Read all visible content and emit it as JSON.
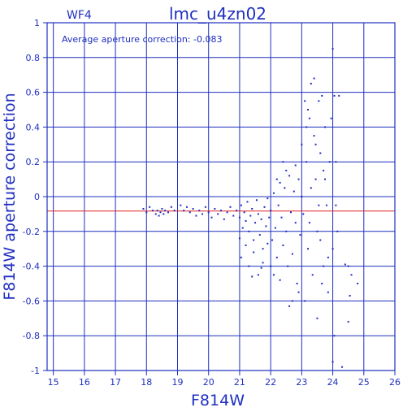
{
  "chart_data": {
    "type": "scatter",
    "panel_label": "WF4",
    "title": "lmc_u4zn02",
    "annotation": "Average aperture correction: -0.083",
    "xlabel": "F814W",
    "ylabel": "F814W aperture correction",
    "xlim": [
      14.8,
      26
    ],
    "ylim": [
      -1,
      1
    ],
    "x_ticks": [
      15,
      16,
      17,
      18,
      19,
      20,
      21,
      22,
      23,
      24,
      25,
      26
    ],
    "y_ticks": [
      -1,
      -0.8,
      -0.6,
      -0.4,
      -0.2,
      0,
      0.2,
      0.4,
      0.6,
      0.8,
      1
    ],
    "y_tick_labels": [
      "-1",
      "-0.8",
      "-0.6",
      "-0.4",
      "-0.2",
      "0",
      "0.2",
      "0.4",
      "0.6",
      "0.8",
      "1"
    ],
    "grid": true,
    "reference_line": {
      "y": -0.083,
      "color": "#e02020"
    },
    "colors": {
      "axes": "#1f2fbf",
      "points": "#1f2fbf",
      "reference": "#e02020"
    },
    "series": [
      {
        "points": [
          [
            17.9,
            -0.07
          ],
          [
            18.0,
            -0.09
          ],
          [
            18.1,
            -0.06
          ],
          [
            18.2,
            -0.08
          ],
          [
            18.3,
            -0.1
          ],
          [
            18.35,
            -0.08
          ],
          [
            18.4,
            -0.11
          ],
          [
            18.45,
            -0.09
          ],
          [
            18.5,
            -0.07
          ],
          [
            18.55,
            -0.1
          ],
          [
            18.6,
            -0.08
          ],
          [
            18.7,
            -0.09
          ],
          [
            18.8,
            -0.06
          ],
          [
            18.9,
            -0.08
          ],
          [
            19.1,
            -0.05
          ],
          [
            19.2,
            -0.08
          ],
          [
            19.3,
            -0.06
          ],
          [
            19.4,
            -0.09
          ],
          [
            19.5,
            -0.07
          ],
          [
            19.6,
            -0.11
          ],
          [
            19.7,
            -0.08
          ],
          [
            19.8,
            -0.1
          ],
          [
            19.9,
            -0.06
          ],
          [
            20.0,
            -0.09
          ],
          [
            20.1,
            -0.12
          ],
          [
            20.2,
            -0.07
          ],
          [
            20.3,
            -0.1
          ],
          [
            20.4,
            -0.08
          ],
          [
            20.5,
            -0.13
          ],
          [
            20.6,
            -0.09
          ],
          [
            20.7,
            -0.06
          ],
          [
            20.8,
            -0.11
          ],
          [
            20.9,
            -0.08
          ],
          [
            21.0,
            -0.12
          ],
          [
            21.05,
            -0.05
          ],
          [
            21.1,
            -0.18
          ],
          [
            21.15,
            -0.09
          ],
          [
            21.2,
            -0.14
          ],
          [
            21.25,
            -0.03
          ],
          [
            21.3,
            -0.2
          ],
          [
            21.35,
            -0.11
          ],
          [
            21.4,
            -0.07
          ],
          [
            21.45,
            -0.25
          ],
          [
            21.5,
            -0.15
          ],
          [
            21.55,
            -0.02
          ],
          [
            21.6,
            -0.1
          ],
          [
            21.65,
            -0.22
          ],
          [
            21.7,
            -0.13
          ],
          [
            21.75,
            -0.3
          ],
          [
            21.8,
            -0.06
          ],
          [
            21.85,
            -0.17
          ],
          [
            21.9,
            -0.01
          ],
          [
            21.95,
            -0.12
          ],
          [
            21.05,
            -0.35
          ],
          [
            21.2,
            -0.28
          ],
          [
            21.3,
            -0.4
          ],
          [
            21.45,
            -0.32
          ],
          [
            21.6,
            -0.45
          ],
          [
            21.75,
            -0.38
          ],
          [
            21.9,
            -0.27
          ],
          [
            21.4,
            -0.46
          ],
          [
            21.0,
            -0.24
          ],
          [
            21.7,
            -0.41
          ],
          [
            22.0,
            -0.08
          ],
          [
            22.05,
            -0.25
          ],
          [
            22.1,
            0.02
          ],
          [
            22.15,
            -0.18
          ],
          [
            22.2,
            -0.35
          ],
          [
            22.25,
            -0.05
          ],
          [
            22.3,
            0.08
          ],
          [
            22.35,
            -0.12
          ],
          [
            22.4,
            -0.28
          ],
          [
            22.45,
            0.05
          ],
          [
            22.5,
            -0.2
          ],
          [
            22.55,
            -0.4
          ],
          [
            22.6,
            0.12
          ],
          [
            22.65,
            -0.09
          ],
          [
            22.7,
            -0.33
          ],
          [
            22.75,
            0.03
          ],
          [
            22.8,
            -0.15
          ],
          [
            22.85,
            -0.5
          ],
          [
            22.9,
            0.1
          ],
          [
            22.95,
            -0.22
          ],
          [
            22.1,
            -0.45
          ],
          [
            22.3,
            -0.48
          ],
          [
            22.5,
            0.15
          ],
          [
            22.7,
            -0.6
          ],
          [
            22.8,
            0.18
          ],
          [
            22.6,
            -0.63
          ],
          [
            22.4,
            0.2
          ],
          [
            22.9,
            -0.55
          ],
          [
            22.2,
            0.1
          ],
          [
            22.0,
            -0.4
          ],
          [
            23.0,
            0.3
          ],
          [
            23.05,
            -0.1
          ],
          [
            23.1,
            0.55
          ],
          [
            23.15,
            0.2
          ],
          [
            23.2,
            -0.3
          ],
          [
            23.25,
            0.45
          ],
          [
            23.3,
            0.05
          ],
          [
            23.35,
            -0.45
          ],
          [
            23.4,
            0.35
          ],
          [
            23.45,
            0.1
          ],
          [
            23.5,
            -0.2
          ],
          [
            23.55,
            0.55
          ],
          [
            23.6,
            0.25
          ],
          [
            23.65,
            -0.5
          ],
          [
            23.7,
            0.15
          ],
          [
            23.75,
            0.4
          ],
          [
            23.8,
            -0.05
          ],
          [
            23.85,
            -0.35
          ],
          [
            23.9,
            0.2
          ],
          [
            23.95,
            0.45
          ],
          [
            23.1,
            -0.6
          ],
          [
            23.3,
            0.65
          ],
          [
            23.5,
            -0.7
          ],
          [
            23.2,
            0.5
          ],
          [
            23.6,
            -0.25
          ],
          [
            23.4,
            0.68
          ],
          [
            23.7,
            -0.4
          ],
          [
            23.0,
            0.0
          ],
          [
            23.25,
            -0.15
          ],
          [
            23.45,
            0.3
          ],
          [
            23.65,
            0.58
          ],
          [
            23.85,
            -0.55
          ],
          [
            23.15,
            0.4
          ],
          [
            23.55,
            -0.05
          ],
          [
            23.75,
            0.1
          ],
          [
            24.0,
            0.85
          ],
          [
            24.05,
            0.58
          ],
          [
            24.1,
            0.2
          ],
          [
            24.15,
            -0.2
          ],
          [
            24.2,
            0.58
          ],
          [
            24.05,
            -0.8
          ],
          [
            24.0,
            -0.3
          ],
          [
            24.1,
            -0.05
          ],
          [
            24.4,
            -0.39
          ],
          [
            24.5,
            -0.4
          ],
          [
            24.6,
            -0.45
          ],
          [
            24.8,
            -0.5
          ],
          [
            24.55,
            -0.57
          ],
          [
            24.5,
            -0.72
          ],
          [
            24.0,
            -0.95
          ],
          [
            24.3,
            -0.98
          ]
        ]
      }
    ]
  }
}
